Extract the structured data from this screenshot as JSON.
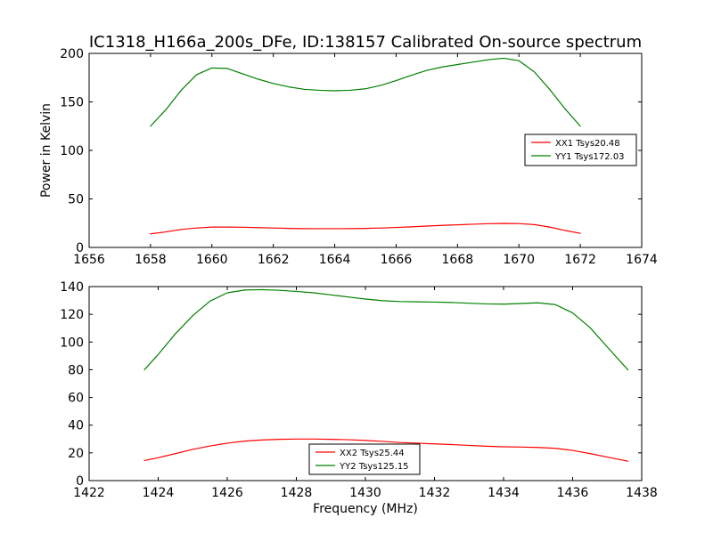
{
  "figure": {
    "title": "IC1318_H166a_200s_DFe, ID:138157 Calibrated On-source spectrum",
    "xlabel": "Frequency (MHz)",
    "ylabel": "Power in Kelvin"
  },
  "colors": {
    "xx": "#ff0000",
    "yy": "#008000",
    "axes": "#000000",
    "background": "#ffffff"
  },
  "chart_data": [
    {
      "type": "line",
      "title": "IC1318_H166a_200s_DFe, ID:138157 Calibrated On-source spectrum",
      "xlabel": "",
      "ylabel": "Power in Kelvin",
      "xlim": [
        1656,
        1674
      ],
      "ylim": [
        0,
        200
      ],
      "xticks": [
        "1656",
        "1658",
        "1660",
        "1662",
        "1664",
        "1666",
        "1668",
        "1670",
        "1672",
        "1674"
      ],
      "yticks": [
        "0",
        "50",
        "100",
        "150",
        "200"
      ],
      "grid": false,
      "legend_position": "right",
      "series": [
        {
          "name": "XX1 Tsys20.48",
          "color": "#ff0000",
          "x": [
            1658.0,
            1658.5,
            1659.0,
            1659.5,
            1660.0,
            1660.5,
            1661.0,
            1661.5,
            1662.0,
            1662.5,
            1663.0,
            1663.5,
            1664.0,
            1664.5,
            1665.0,
            1665.5,
            1666.0,
            1666.5,
            1667.0,
            1667.5,
            1668.0,
            1668.5,
            1669.0,
            1669.5,
            1670.0,
            1670.5,
            1671.0,
            1671.5,
            1672.0
          ],
          "y": [
            14.0,
            16.0,
            18.5,
            20.0,
            21.0,
            21.0,
            20.8,
            20.4,
            20.0,
            19.6,
            19.4,
            19.3,
            19.3,
            19.4,
            19.6,
            20.0,
            20.6,
            21.2,
            22.0,
            22.7,
            23.3,
            23.9,
            24.5,
            24.8,
            24.6,
            23.5,
            21.0,
            17.5,
            14.5
          ]
        },
        {
          "name": "YY1 Tsys172.03",
          "color": "#008000",
          "x": [
            1658.0,
            1658.5,
            1659.0,
            1659.5,
            1660.0,
            1660.5,
            1661.0,
            1661.5,
            1662.0,
            1662.5,
            1663.0,
            1663.5,
            1664.0,
            1664.5,
            1665.0,
            1665.5,
            1666.0,
            1666.5,
            1667.0,
            1667.5,
            1668.0,
            1668.5,
            1669.0,
            1669.5,
            1670.0,
            1670.5,
            1671.0,
            1671.5,
            1672.0
          ],
          "y": [
            125.0,
            142.0,
            162.0,
            178.0,
            185.0,
            184.5,
            179.0,
            173.5,
            169.0,
            165.5,
            163.0,
            162.0,
            161.5,
            162.0,
            163.5,
            167.0,
            172.0,
            177.5,
            182.5,
            186.0,
            188.5,
            191.0,
            193.5,
            195.0,
            192.5,
            181.0,
            163.0,
            143.0,
            125.0
          ]
        }
      ]
    },
    {
      "type": "line",
      "title": "",
      "xlabel": "Frequency (MHz)",
      "ylabel": "",
      "xlim": [
        1422,
        1438
      ],
      "ylim": [
        0,
        140
      ],
      "xticks": [
        "1422",
        "1424",
        "1426",
        "1428",
        "1430",
        "1432",
        "1434",
        "1436",
        "1438"
      ],
      "yticks": [
        "0",
        "20",
        "40",
        "60",
        "80",
        "100",
        "120",
        "140"
      ],
      "grid": false,
      "legend_position": "bottom-center",
      "series": [
        {
          "name": "XX2 Tsys25.44",
          "color": "#ff0000",
          "x": [
            1423.6,
            1424.0,
            1424.5,
            1425.0,
            1425.5,
            1426.0,
            1426.5,
            1427.0,
            1427.5,
            1428.0,
            1428.5,
            1429.0,
            1429.5,
            1430.0,
            1430.5,
            1431.0,
            1431.5,
            1432.0,
            1432.5,
            1433.0,
            1433.5,
            1434.0,
            1434.5,
            1435.0,
            1435.5,
            1436.0,
            1436.5,
            1437.0,
            1437.6
          ],
          "y": [
            14.5,
            16.5,
            19.5,
            22.5,
            25.0,
            27.0,
            28.5,
            29.3,
            29.8,
            30.0,
            30.0,
            29.8,
            29.5,
            29.0,
            28.3,
            27.5,
            27.0,
            26.5,
            26.0,
            25.4,
            24.8,
            24.4,
            24.2,
            23.9,
            23.3,
            21.8,
            19.5,
            17.0,
            14.0
          ]
        },
        {
          "name": "YY2 Tsys125.15",
          "color": "#008000",
          "x": [
            1423.6,
            1424.0,
            1424.5,
            1425.0,
            1425.5,
            1426.0,
            1426.5,
            1427.0,
            1427.5,
            1428.0,
            1428.5,
            1429.0,
            1429.5,
            1430.0,
            1430.5,
            1431.0,
            1431.5,
            1432.0,
            1432.5,
            1433.0,
            1433.5,
            1434.0,
            1434.5,
            1435.0,
            1435.5,
            1436.0,
            1436.5,
            1437.0,
            1437.6
          ],
          "y": [
            80.0,
            91.0,
            106.0,
            119.0,
            129.5,
            135.5,
            137.5,
            137.8,
            137.3,
            136.5,
            135.5,
            134.0,
            132.5,
            131.0,
            129.8,
            129.2,
            129.0,
            128.8,
            128.5,
            128.0,
            127.5,
            127.3,
            127.8,
            128.3,
            127.0,
            121.0,
            110.5,
            96.5,
            80.0
          ]
        }
      ]
    }
  ]
}
